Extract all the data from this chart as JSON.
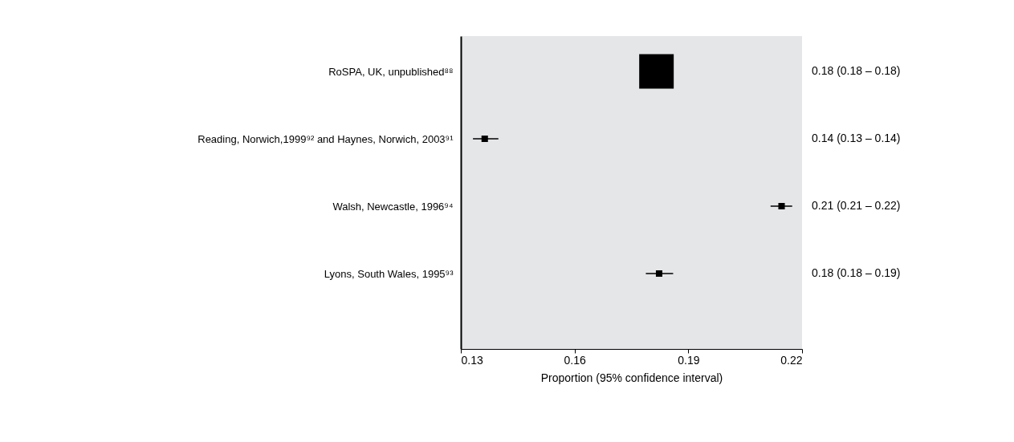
{
  "chart_data": {
    "type": "bubble",
    "orientation": "horizontal",
    "marker": "square",
    "categories": [
      "RoSPA, UK, unpublished⁸⁸",
      "Reading, Norwich,1999⁹² and Haynes, Norwich, 2003⁹¹",
      "Walsh, Newcastle, 1996⁹⁴",
      "Lyons, South Wales, 1995⁹³"
    ],
    "values": [
      0.1816,
      0.1363,
      0.2146,
      0.1823
    ],
    "errors": [
      null,
      [
        0.1332,
        0.1399
      ],
      [
        0.2117,
        0.2174
      ],
      [
        0.1788,
        0.186
      ]
    ],
    "sizes": [
      1,
      0.035,
      0.035,
      0.035
    ],
    "value_labels": [
      "0.18 (0.18 – 0.18)",
      "0.14 (0.13 – 0.14)",
      "0.21 (0.21 – 0.22)",
      "0.18 (0.18 – 0.19)"
    ],
    "color": "#000000",
    "xlabel": "Proportion (95% confidence interval)",
    "xlim": [
      0.13,
      0.22
    ],
    "xticks": [
      0.13,
      0.16,
      0.19,
      0.22
    ],
    "grid": false
  }
}
